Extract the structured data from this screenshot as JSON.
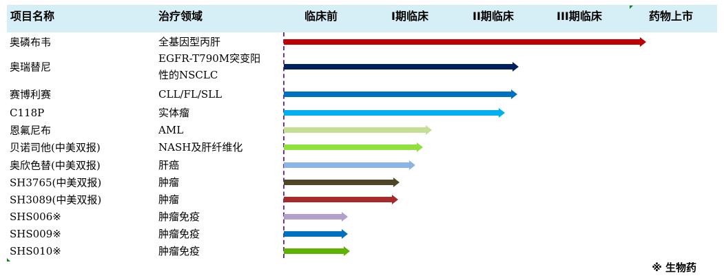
{
  "header": {
    "name_col": "项目名称",
    "area_col": "治疗领域",
    "phases": [
      "临床前",
      "I期临床",
      "II期临床",
      "III期临床",
      "药物上市"
    ]
  },
  "rows": [
    {
      "name": "奥磷布韦",
      "area": "全基因型丙肝",
      "progress_pct": 83.5,
      "color": "#c00000"
    },
    {
      "name": "奥瑞替尼",
      "area": "EGFR-T790M突变阳性的NSCLC",
      "area_lines": [
        "EGFR-T790M突变阳",
        "性的NSCLC"
      ],
      "progress_pct": 54.1,
      "color": "#002060"
    },
    {
      "name": "赛博利赛",
      "area": "CLL/FL/SLL",
      "progress_pct": 53.8,
      "color": "#0070c0"
    },
    {
      "name": "C118P",
      "area": "实体瘤",
      "progress_pct": 51.0,
      "color": "#00b0f0"
    },
    {
      "name": "恩氟尼布",
      "area": "AML",
      "progress_pct": 34.1,
      "color": "#c4de94"
    },
    {
      "name": "贝诺司他(中美双报)",
      "area": "NASH及肝纤维化",
      "progress_pct": 32.1,
      "color": "#92e03c"
    },
    {
      "name": "奥欣色替(中美双报)",
      "area": "肝癌",
      "progress_pct": 30.3,
      "color": "#8db4e2"
    },
    {
      "name": "SH3765(中美双报)",
      "area": "肿瘤",
      "progress_pct": 26.7,
      "color": "#4f4628"
    },
    {
      "name": "SH3089(中美双报)",
      "area": "肿瘤",
      "progress_pct": 26.3,
      "color": "#a52a2a"
    },
    {
      "name": "SHS006※",
      "area": "肿瘤免疫",
      "progress_pct": 14.8,
      "color": "#b29fcc"
    },
    {
      "name": "SHS009※",
      "area": "肿瘤免疫",
      "progress_pct": 14.8,
      "color": "#0070c0"
    },
    {
      "name": "SHS010※",
      "area": "肿瘤免疫",
      "progress_pct": 15.2,
      "color": "#5eb300"
    }
  ],
  "legend": "※ 生物药",
  "colors": {
    "header_bg": "#d6eef5",
    "divider": "#7030a0"
  }
}
